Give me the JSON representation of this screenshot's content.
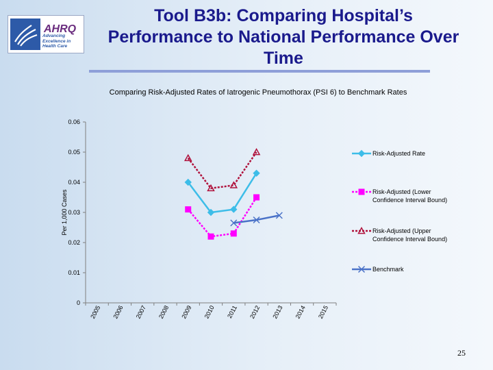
{
  "slide": {
    "title": "Tool B3b: Comparing Hospital’s Performance to National Performance Over Time",
    "page_number": "25"
  },
  "logo": {
    "brand": "AHRQ",
    "tagline": "Advancing Excellence in Health Care"
  },
  "colors": {
    "title": "#1a1a8c",
    "rule": "#8e9fd8",
    "risk_adjusted": "#3dbde8",
    "lower_bound": "#ff00ff",
    "upper_bound": "#b0123c",
    "benchmark": "#4a72c8"
  },
  "chart_data": {
    "type": "line",
    "title": "Comparing Risk-Adjusted Rates of Iatrogenic Pneumothorax (PSI 6) to Benchmark Rates",
    "ylabel": "Per 1,000 Cases",
    "xlabel": "",
    "ylim": [
      0,
      0.06
    ],
    "yticks": [
      "0",
      "0.01",
      "0.02",
      "0.03",
      "0.04",
      "0.05",
      "0.06"
    ],
    "categories": [
      "2005",
      "2006",
      "2007",
      "2008",
      "2009",
      "2010",
      "2011",
      "2012",
      "2013",
      "2014",
      "2015"
    ],
    "grid": false,
    "legend_position": "right",
    "series": [
      {
        "name": "Risk-Adjusted Rate",
        "marker": "diamond",
        "values": [
          null,
          null,
          null,
          null,
          0.04,
          0.03,
          0.031,
          0.043,
          null,
          null,
          null
        ]
      },
      {
        "name": "Risk-Adjusted (Lower Confidence Interval Bound)",
        "marker": "square",
        "values": [
          null,
          null,
          null,
          null,
          0.031,
          0.022,
          0.023,
          0.035,
          null,
          null,
          null
        ]
      },
      {
        "name": "Risk-Adjusted (Upper Confidence Interval Bound)",
        "marker": "triangle",
        "values": [
          null,
          null,
          null,
          null,
          0.048,
          0.038,
          0.039,
          0.05,
          null,
          null,
          null
        ]
      },
      {
        "name": "Benchmark",
        "marker": "x",
        "values": [
          null,
          null,
          null,
          null,
          null,
          null,
          0.0265,
          0.0275,
          0.029,
          null,
          null
        ]
      }
    ]
  }
}
